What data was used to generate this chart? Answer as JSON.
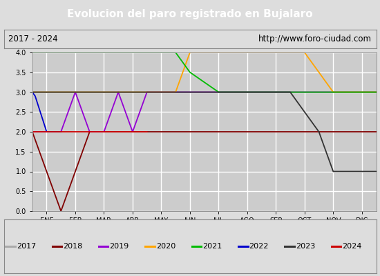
{
  "title": "Evolucion del paro registrado en Bujalaro",
  "title_bg": "#4472c4",
  "title_color": "white",
  "subtitle_left": "2017 - 2024",
  "subtitle_right": "http://www.foro-ciudad.com",
  "months": [
    "ENE",
    "FEB",
    "MAR",
    "ABR",
    "MAY",
    "JUN",
    "JUL",
    "AGO",
    "SEP",
    "OCT",
    "NOV",
    "DIC"
  ],
  "ylim": [
    0.0,
    4.0
  ],
  "yticks": [
    0.0,
    0.5,
    1.0,
    1.5,
    2.0,
    2.5,
    3.0,
    3.5,
    4.0
  ],
  "series": [
    {
      "year": "2017",
      "color": "#aaaaaa",
      "x": [
        0,
        12
      ],
      "y": [
        3.0,
        3.0
      ]
    },
    {
      "year": "2018",
      "color": "#800000",
      "x": [
        0,
        0.5,
        1.0,
        2.0,
        3.0,
        4.0,
        5.0,
        6.0,
        7.0,
        8.0,
        9.0,
        10.0,
        11.0,
        12.0
      ],
      "y": [
        2.0,
        1.0,
        0.0,
        2.0,
        2.0,
        2.0,
        2.0,
        2.0,
        2.0,
        2.0,
        2.0,
        2.0,
        2.0,
        2.0
      ]
    },
    {
      "year": "2019",
      "color": "#9400d3",
      "x": [
        0.0,
        1.0,
        1.5,
        2.0,
        2.5,
        3.0,
        3.5,
        4.0,
        5.0,
        6.0,
        7.0,
        8.0,
        9.0,
        10.0,
        11.0,
        12.0
      ],
      "y": [
        2.0,
        2.0,
        3.0,
        2.0,
        2.0,
        3.0,
        2.0,
        3.0,
        3.0,
        3.0,
        3.0,
        3.0,
        3.0,
        3.0,
        3.0,
        3.0
      ]
    },
    {
      "year": "2020",
      "color": "#ffa500",
      "x": [
        0.0,
        1.0,
        2.0,
        3.0,
        4.0,
        5.0,
        5.5,
        6.5,
        9.5,
        10.5,
        11.0,
        12.0
      ],
      "y": [
        3.0,
        3.0,
        3.0,
        3.0,
        3.0,
        3.0,
        4.0,
        4.0,
        4.0,
        3.0,
        3.0,
        3.0
      ]
    },
    {
      "year": "2021",
      "color": "#00bb00",
      "x": [
        0.0,
        5.0,
        5.5,
        6.5,
        12.0
      ],
      "y": [
        4.0,
        4.0,
        3.5,
        3.0,
        3.0
      ]
    },
    {
      "year": "2022",
      "color": "#0000cc",
      "x": [
        0.0,
        0.1,
        0.5,
        1.0
      ],
      "y": [
        3.0,
        2.9,
        2.0,
        2.0
      ]
    },
    {
      "year": "2023",
      "color": "#333333",
      "x": [
        0.0,
        9.0,
        9.5,
        10.0,
        10.5,
        12.0
      ],
      "y": [
        3.0,
        3.0,
        2.5,
        2.0,
        1.0,
        1.0
      ]
    },
    {
      "year": "2024",
      "color": "#cc0000",
      "x": [
        0.0,
        1.0,
        2.0,
        3.0,
        4.0
      ],
      "y": [
        2.0,
        2.0,
        2.0,
        2.0,
        2.0
      ]
    }
  ],
  "legend_order": [
    "2017",
    "2018",
    "2019",
    "2020",
    "2021",
    "2022",
    "2023",
    "2024"
  ],
  "bg_color": "#dddddd",
  "plot_bg_color": "#cccccc",
  "grid_color": "#ffffff",
  "title_fontsize": 11,
  "tick_fontsize": 7,
  "legend_fontsize": 8
}
